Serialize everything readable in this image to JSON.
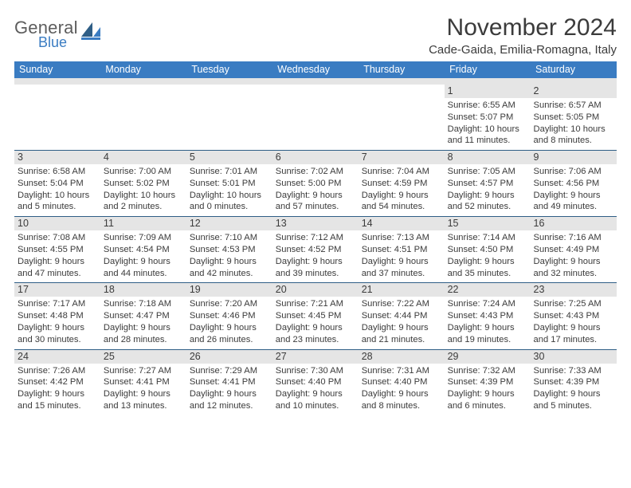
{
  "brand": {
    "word1": "General",
    "word2": "Blue"
  },
  "title": "November 2024",
  "location": "Cade-Gaida, Emilia-Romagna, Italy",
  "colors": {
    "header_bg": "#3a7cc2",
    "header_text": "#ffffff",
    "gray_band": "#e5e5e5",
    "daynum_border": "#2f5e86",
    "body_text": "#3b3b3b",
    "page_bg": "#ffffff",
    "logo_gray": "#5d5d5d",
    "logo_blue": "#3a7cc2"
  },
  "typography": {
    "month_title_fontsize": 30,
    "location_fontsize": 15,
    "dayheader_fontsize": 12.5,
    "daynum_fontsize": 12.5,
    "cell_fontsize": 11.2
  },
  "day_headers": [
    "Sunday",
    "Monday",
    "Tuesday",
    "Wednesday",
    "Thursday",
    "Friday",
    "Saturday"
  ],
  "weeks": [
    [
      null,
      null,
      null,
      null,
      null,
      {
        "n": "1",
        "sr": "Sunrise: 6:55 AM",
        "ss": "Sunset: 5:07 PM",
        "dl": "Daylight: 10 hours and 11 minutes."
      },
      {
        "n": "2",
        "sr": "Sunrise: 6:57 AM",
        "ss": "Sunset: 5:05 PM",
        "dl": "Daylight: 10 hours and 8 minutes."
      }
    ],
    [
      {
        "n": "3",
        "sr": "Sunrise: 6:58 AM",
        "ss": "Sunset: 5:04 PM",
        "dl": "Daylight: 10 hours and 5 minutes."
      },
      {
        "n": "4",
        "sr": "Sunrise: 7:00 AM",
        "ss": "Sunset: 5:02 PM",
        "dl": "Daylight: 10 hours and 2 minutes."
      },
      {
        "n": "5",
        "sr": "Sunrise: 7:01 AM",
        "ss": "Sunset: 5:01 PM",
        "dl": "Daylight: 10 hours and 0 minutes."
      },
      {
        "n": "6",
        "sr": "Sunrise: 7:02 AM",
        "ss": "Sunset: 5:00 PM",
        "dl": "Daylight: 9 hours and 57 minutes."
      },
      {
        "n": "7",
        "sr": "Sunrise: 7:04 AM",
        "ss": "Sunset: 4:59 PM",
        "dl": "Daylight: 9 hours and 54 minutes."
      },
      {
        "n": "8",
        "sr": "Sunrise: 7:05 AM",
        "ss": "Sunset: 4:57 PM",
        "dl": "Daylight: 9 hours and 52 minutes."
      },
      {
        "n": "9",
        "sr": "Sunrise: 7:06 AM",
        "ss": "Sunset: 4:56 PM",
        "dl": "Daylight: 9 hours and 49 minutes."
      }
    ],
    [
      {
        "n": "10",
        "sr": "Sunrise: 7:08 AM",
        "ss": "Sunset: 4:55 PM",
        "dl": "Daylight: 9 hours and 47 minutes."
      },
      {
        "n": "11",
        "sr": "Sunrise: 7:09 AM",
        "ss": "Sunset: 4:54 PM",
        "dl": "Daylight: 9 hours and 44 minutes."
      },
      {
        "n": "12",
        "sr": "Sunrise: 7:10 AM",
        "ss": "Sunset: 4:53 PM",
        "dl": "Daylight: 9 hours and 42 minutes."
      },
      {
        "n": "13",
        "sr": "Sunrise: 7:12 AM",
        "ss": "Sunset: 4:52 PM",
        "dl": "Daylight: 9 hours and 39 minutes."
      },
      {
        "n": "14",
        "sr": "Sunrise: 7:13 AM",
        "ss": "Sunset: 4:51 PM",
        "dl": "Daylight: 9 hours and 37 minutes."
      },
      {
        "n": "15",
        "sr": "Sunrise: 7:14 AM",
        "ss": "Sunset: 4:50 PM",
        "dl": "Daylight: 9 hours and 35 minutes."
      },
      {
        "n": "16",
        "sr": "Sunrise: 7:16 AM",
        "ss": "Sunset: 4:49 PM",
        "dl": "Daylight: 9 hours and 32 minutes."
      }
    ],
    [
      {
        "n": "17",
        "sr": "Sunrise: 7:17 AM",
        "ss": "Sunset: 4:48 PM",
        "dl": "Daylight: 9 hours and 30 minutes."
      },
      {
        "n": "18",
        "sr": "Sunrise: 7:18 AM",
        "ss": "Sunset: 4:47 PM",
        "dl": "Daylight: 9 hours and 28 minutes."
      },
      {
        "n": "19",
        "sr": "Sunrise: 7:20 AM",
        "ss": "Sunset: 4:46 PM",
        "dl": "Daylight: 9 hours and 26 minutes."
      },
      {
        "n": "20",
        "sr": "Sunrise: 7:21 AM",
        "ss": "Sunset: 4:45 PM",
        "dl": "Daylight: 9 hours and 23 minutes."
      },
      {
        "n": "21",
        "sr": "Sunrise: 7:22 AM",
        "ss": "Sunset: 4:44 PM",
        "dl": "Daylight: 9 hours and 21 minutes."
      },
      {
        "n": "22",
        "sr": "Sunrise: 7:24 AM",
        "ss": "Sunset: 4:43 PM",
        "dl": "Daylight: 9 hours and 19 minutes."
      },
      {
        "n": "23",
        "sr": "Sunrise: 7:25 AM",
        "ss": "Sunset: 4:43 PM",
        "dl": "Daylight: 9 hours and 17 minutes."
      }
    ],
    [
      {
        "n": "24",
        "sr": "Sunrise: 7:26 AM",
        "ss": "Sunset: 4:42 PM",
        "dl": "Daylight: 9 hours and 15 minutes."
      },
      {
        "n": "25",
        "sr": "Sunrise: 7:27 AM",
        "ss": "Sunset: 4:41 PM",
        "dl": "Daylight: 9 hours and 13 minutes."
      },
      {
        "n": "26",
        "sr": "Sunrise: 7:29 AM",
        "ss": "Sunset: 4:41 PM",
        "dl": "Daylight: 9 hours and 12 minutes."
      },
      {
        "n": "27",
        "sr": "Sunrise: 7:30 AM",
        "ss": "Sunset: 4:40 PM",
        "dl": "Daylight: 9 hours and 10 minutes."
      },
      {
        "n": "28",
        "sr": "Sunrise: 7:31 AM",
        "ss": "Sunset: 4:40 PM",
        "dl": "Daylight: 9 hours and 8 minutes."
      },
      {
        "n": "29",
        "sr": "Sunrise: 7:32 AM",
        "ss": "Sunset: 4:39 PM",
        "dl": "Daylight: 9 hours and 6 minutes."
      },
      {
        "n": "30",
        "sr": "Sunrise: 7:33 AM",
        "ss": "Sunset: 4:39 PM",
        "dl": "Daylight: 9 hours and 5 minutes."
      }
    ]
  ]
}
